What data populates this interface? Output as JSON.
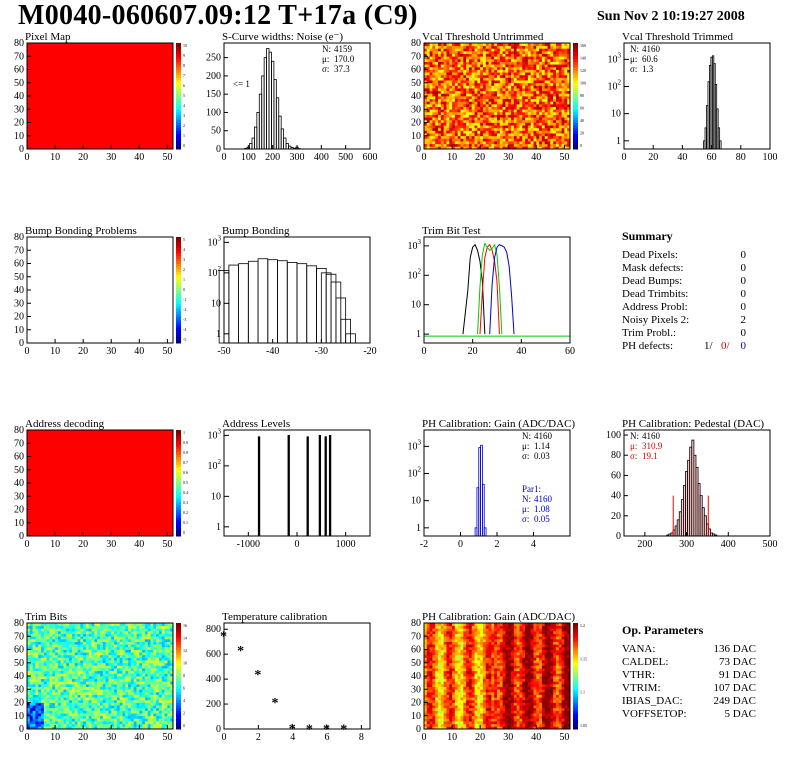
{
  "header": {
    "title": "M0040-060607.09:12 T+17a (C9)",
    "timestamp": "Sun Nov  2 10:19:27 2008"
  },
  "colors": {
    "frame": "#000000",
    "hist_line": "#000000",
    "red_fill": "#ff0000",
    "blue_line": "#0000cc",
    "green_line": "#00cc00",
    "red_text": "#dd0000",
    "blue_text": "#0000cc"
  },
  "summary": {
    "title": "Summary",
    "rows": [
      {
        "label": "Dead Pixels:",
        "value": "0"
      },
      {
        "label": "Mask defects:",
        "value": "0"
      },
      {
        "label": "Dead Bumps:",
        "value": "0"
      },
      {
        "label": "Dead Trimbits:",
        "value": "0"
      },
      {
        "label": "Address Probl:",
        "value": "0"
      },
      {
        "label": "Noisy Pixels 2:",
        "value": "2"
      },
      {
        "label": "Trim Probl.:",
        "value": "0"
      }
    ],
    "ph_defects": {
      "label": "PH defects:",
      "v1": "1/",
      "v2": "0/",
      "v3": "0"
    }
  },
  "op_parameters": {
    "title": "Op. Parameters",
    "rows": [
      {
        "label": "VANA:",
        "value": "136 DAC"
      },
      {
        "label": "CALDEL:",
        "value": "73 DAC"
      },
      {
        "label": "VTHR:",
        "value": "91 DAC"
      },
      {
        "label": "VTRIM:",
        "value": "107 DAC"
      },
      {
        "label": "IBIAS_DAC:",
        "value": "249 DAC"
      },
      {
        "label": "VOFFSETOP:",
        "value": "5 DAC"
      }
    ]
  },
  "chart_data": [
    {
      "id": "pixel_map",
      "type": "heatmap",
      "title": "Pixel Map",
      "xlim": [
        0,
        52
      ],
      "ylim": [
        0,
        80
      ],
      "xticks": [
        0,
        10,
        20,
        30,
        40,
        50
      ],
      "yticks": [
        0,
        10,
        20,
        30,
        40,
        50,
        60,
        70,
        80
      ],
      "fill": "uniform",
      "uniform_color": "#ff0000",
      "palette_ticks": [
        "10",
        "9",
        "8",
        "7",
        "6",
        "5",
        "4",
        "3",
        "2",
        "1",
        "0"
      ]
    },
    {
      "id": "scurve",
      "type": "bar",
      "title": "S-Curve widths: Noise (e⁻)",
      "xlim": [
        0,
        600
      ],
      "ylim": [
        0,
        290
      ],
      "xticks": [
        0,
        100,
        200,
        300,
        400,
        500,
        600
      ],
      "yticks": [
        0,
        50,
        100,
        150,
        200,
        250
      ],
      "stats": [
        {
          "label": "N:",
          "value": "4159"
        },
        {
          "label": "μ:",
          "value": "170.0"
        },
        {
          "label": "σ:",
          "value": "37.3"
        }
      ],
      "annotation": "<= 1",
      "x": [
        90,
        100,
        110,
        120,
        130,
        140,
        150,
        160,
        170,
        180,
        190,
        200,
        210,
        220,
        230,
        240,
        250,
        260,
        270,
        280,
        290,
        300,
        310
      ],
      "values": [
        2,
        5,
        15,
        30,
        60,
        100,
        150,
        200,
        250,
        275,
        265,
        240,
        190,
        140,
        90,
        55,
        30,
        15,
        8,
        4,
        2,
        5,
        1
      ]
    },
    {
      "id": "vcal_untrimmed",
      "type": "heatmap",
      "title": "Vcal Threshold Untrimmed",
      "xlim": [
        0,
        52
      ],
      "ylim": [
        0,
        80
      ],
      "xticks": [
        0,
        10,
        20,
        30,
        40,
        50
      ],
      "yticks": [
        0,
        10,
        20,
        30,
        40,
        50,
        60,
        70,
        80
      ],
      "fill": "noise",
      "base_mean": 0.78,
      "palette_ticks": [
        "160",
        "140",
        "120",
        "100",
        "80",
        "60",
        "40",
        "20",
        "0"
      ]
    },
    {
      "id": "vcal_trimmed",
      "type": "bar",
      "title": "Vcal Threshold Trimmed",
      "log": true,
      "xlim": [
        0,
        100
      ],
      "ylim": [
        0.5,
        4000
      ],
      "xticks": [
        0,
        20,
        40,
        60,
        80,
        100
      ],
      "stats": [
        {
          "label": "N:",
          "value": "4160"
        },
        {
          "label": "μ:",
          "value": "60.6"
        },
        {
          "label": "σ:",
          "value": "1.3"
        }
      ],
      "x": [
        55,
        56,
        57,
        58,
        59,
        60,
        61,
        62,
        63,
        64,
        65,
        66
      ],
      "values": [
        1,
        3,
        20,
        150,
        600,
        1200,
        1350,
        700,
        120,
        15,
        3,
        1
      ]
    },
    {
      "id": "bump_problems",
      "type": "heatmap",
      "title": "Bump Bonding Problems",
      "xlim": [
        0,
        52
      ],
      "ylim": [
        0,
        80
      ],
      "xticks": [
        0,
        10,
        20,
        30,
        40,
        50
      ],
      "yticks": [
        0,
        10,
        20,
        30,
        40,
        50,
        60,
        70,
        80
      ],
      "fill": "empty",
      "palette_ticks": [
        "5",
        "4",
        "3",
        "2",
        "1",
        "0",
        "-1",
        "-2",
        "-3",
        "-4",
        "-5"
      ]
    },
    {
      "id": "bump_bonding",
      "type": "bar",
      "title": "Bump Bonding",
      "log": true,
      "xlim": [
        -50,
        -20
      ],
      "ylim": [
        0.5,
        1500
      ],
      "xticks": [
        -50,
        -40,
        -30,
        -20
      ],
      "x": [
        -50,
        -48,
        -46,
        -44,
        -42,
        -40,
        -38,
        -36,
        -34,
        -32,
        -30,
        -29,
        -28,
        -27,
        -26,
        -25,
        -24
      ],
      "values": [
        120,
        180,
        200,
        240,
        290,
        270,
        250,
        220,
        200,
        170,
        140,
        100,
        90,
        50,
        15,
        3,
        1
      ]
    },
    {
      "id": "trim_bit",
      "type": "line",
      "title": "Trim Bit Test",
      "log": true,
      "xlim": [
        0,
        60
      ],
      "ylim": [
        0.5,
        2000
      ],
      "xticks": [
        0,
        20,
        40,
        60
      ],
      "series": [
        {
          "color": "#000000",
          "x": [
            16,
            18,
            19,
            20,
            21,
            22,
            23,
            24,
            25
          ],
          "values": [
            1,
            30,
            400,
            900,
            1100,
            700,
            300,
            60,
            1
          ]
        },
        {
          "color": "#ff0000",
          "x": [
            23,
            24,
            25,
            26,
            27,
            28,
            29,
            30,
            31
          ],
          "values": [
            1,
            30,
            400,
            900,
            1100,
            700,
            300,
            60,
            1
          ]
        },
        {
          "color": "#00cc00",
          "x": [
            22,
            23,
            24,
            25,
            26,
            27,
            28,
            29,
            30,
            31,
            32
          ],
          "values": [
            1,
            40,
            500,
            1200,
            900,
            700,
            800,
            1100,
            500,
            40,
            1
          ]
        },
        {
          "color": "#0000cc",
          "x": [
            27,
            28,
            29,
            30,
            31,
            32,
            33,
            34,
            35,
            36,
            37
          ],
          "values": [
            1,
            50,
            400,
            900,
            1100,
            1000,
            900,
            600,
            200,
            20,
            1
          ]
        }
      ]
    },
    {
      "id": "address_decoding",
      "type": "heatmap",
      "title": "Address decoding",
      "xlim": [
        0,
        52
      ],
      "ylim": [
        0,
        80
      ],
      "xticks": [
        0,
        10,
        20,
        30,
        40,
        50
      ],
      "yticks": [
        0,
        10,
        20,
        30,
        40,
        50,
        60,
        70,
        80
      ],
      "fill": "uniform",
      "uniform_color": "#ff0000",
      "palette_ticks": [
        "1",
        "0.9",
        "0.8",
        "0.7",
        "0.6",
        "0.5",
        "0.4",
        "0.3",
        "0.2",
        "0.1",
        "0"
      ]
    },
    {
      "id": "address_levels",
      "type": "bar",
      "title": "Address Levels",
      "log": true,
      "xlim": [
        -1500,
        1500
      ],
      "ylim": [
        0.5,
        1500
      ],
      "xticks": [
        -1000,
        0,
        1000
      ],
      "x": [
        -780,
        -170,
        220,
        470,
        590,
        680
      ],
      "values": [
        900,
        1000,
        900,
        1000,
        900,
        1000
      ]
    },
    {
      "id": "ph_gain",
      "type": "bar",
      "title": "PH Calibration: Gain (ADC/DAC)",
      "log": true,
      "xlim": [
        -2,
        6
      ],
      "ylim": [
        0.5,
        4000
      ],
      "xticks": [
        -2,
        0,
        2,
        4
      ],
      "stats": [
        {
          "label": "N:",
          "value": "4160"
        },
        {
          "label": "μ:",
          "value": "1.14"
        },
        {
          "label": "σ:",
          "value": "0.03"
        }
      ],
      "fit": [
        {
          "label": "Par1:",
          "value": ""
        },
        {
          "label": "N:",
          "value": "4160"
        },
        {
          "label": "μ:",
          "value": "1.08"
        },
        {
          "label": "σ:",
          "value": "0.05"
        }
      ],
      "x": [
        0.85,
        0.95,
        1.05,
        1.15,
        1.25,
        1.35
      ],
      "values": [
        1,
        30,
        900,
        1100,
        40,
        1
      ]
    },
    {
      "id": "ph_pedestal",
      "type": "bar",
      "title": "PH Calibration: Pedestal (DAC)",
      "xlim": [
        150,
        500
      ],
      "ylim": [
        0,
        105
      ],
      "xticks": [
        200,
        300,
        400,
        500
      ],
      "yticks": [
        0,
        20,
        40,
        60,
        80,
        100
      ],
      "stats": [
        {
          "label": "N:",
          "value": "4160"
        },
        {
          "label": "μ:",
          "value": "310.9"
        },
        {
          "label": "σ:",
          "value": "19.1"
        }
      ],
      "x": [
        255,
        260,
        265,
        270,
        275,
        280,
        285,
        290,
        295,
        300,
        305,
        310,
        315,
        320,
        325,
        330,
        335,
        340,
        345,
        350,
        355,
        360,
        365,
        370
      ],
      "values": [
        1,
        2,
        3,
        6,
        10,
        16,
        24,
        36,
        50,
        64,
        75,
        88,
        95,
        80,
        68,
        52,
        40,
        28,
        20,
        12,
        7,
        3,
        2,
        1
      ],
      "cut_lines": [
        268,
        352
      ]
    },
    {
      "id": "trim_bits_map",
      "type": "heatmap",
      "title": "Trim Bits",
      "xlim": [
        0,
        52
      ],
      "ylim": [
        0,
        80
      ],
      "xticks": [
        0,
        10,
        20,
        30,
        40,
        50
      ],
      "yticks": [
        0,
        10,
        20,
        30,
        40,
        50,
        60,
        70,
        80
      ],
      "fill": "trim",
      "palette_ticks": [
        "16",
        "14",
        "12",
        "10",
        "8",
        "6",
        "4",
        "2",
        "0"
      ]
    },
    {
      "id": "temperature",
      "type": "scatter",
      "title": "Temperature calibration",
      "xlim": [
        0,
        8.5
      ],
      "ylim": [
        0,
        850
      ],
      "xticks": [
        0,
        2,
        4,
        6,
        8
      ],
      "yticks": [
        0,
        200,
        400,
        600,
        800
      ],
      "x": [
        0,
        1,
        2,
        3,
        4,
        5,
        6,
        7
      ],
      "values": [
        750,
        635,
        440,
        215,
        10,
        5,
        5,
        5
      ]
    },
    {
      "id": "ph_gain_map",
      "type": "heatmap",
      "title": "PH Calibration: Gain (ADC/DAC)",
      "xlim": [
        0,
        52
      ],
      "ylim": [
        0,
        80
      ],
      "xticks": [
        0,
        10,
        20,
        30,
        40,
        50
      ],
      "yticks": [
        0,
        10,
        20,
        30,
        40,
        50,
        60,
        70,
        80
      ],
      "fill": "gainmap",
      "palette_ticks": [
        "1.2",
        "1.15",
        "1.1",
        "1.05"
      ]
    }
  ]
}
